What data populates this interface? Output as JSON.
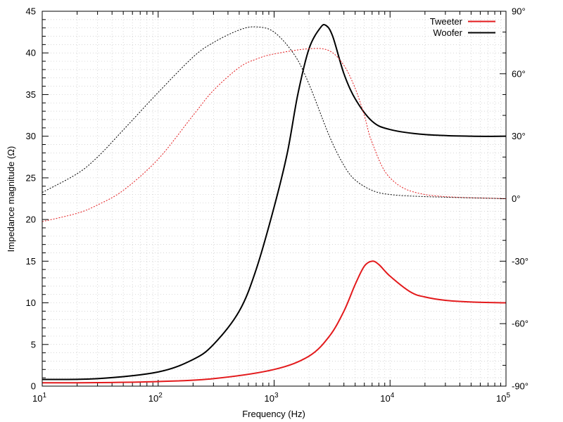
{
  "chart_data": {
    "type": "line",
    "xlabel": "Frequency (Hz)",
    "ylabel": "Impedance magnitude (Ω)",
    "x_scale": "log",
    "xlim": [
      10,
      100000
    ],
    "ylim": [
      0,
      45
    ],
    "y2lim": [
      -90,
      90
    ],
    "x_ticks": [
      {
        "value": 10,
        "base": "10",
        "exp": "1"
      },
      {
        "value": 100,
        "base": "10",
        "exp": "2"
      },
      {
        "value": 1000,
        "base": "10",
        "exp": "3"
      },
      {
        "value": 10000,
        "base": "10",
        "exp": "4"
      },
      {
        "value": 100000,
        "base": "10",
        "exp": "5"
      }
    ],
    "y_ticks": [
      "0",
      "5",
      "10",
      "15",
      "20",
      "25",
      "30",
      "35",
      "40",
      "45"
    ],
    "y2_ticks": [
      "-90°",
      "-60°",
      "-30°",
      "0°",
      "30°",
      "60°",
      "90°"
    ],
    "grid": true,
    "legend_position": "top-right",
    "series": [
      {
        "name": "Tweeter",
        "color": "#e31a1c",
        "axis": "y",
        "style": "solid",
        "x": [
          10,
          30,
          100,
          300,
          1000,
          2000,
          3000,
          4000,
          5000,
          6000,
          7000,
          8000,
          10000,
          15000,
          20000,
          30000,
          50000,
          100000
        ],
        "y": [
          0.4,
          0.42,
          0.55,
          0.9,
          2.0,
          3.6,
          6.0,
          9.0,
          12.2,
          14.4,
          15.0,
          14.6,
          13.2,
          11.3,
          10.7,
          10.3,
          10.1,
          10.0
        ]
      },
      {
        "name": "Woofer",
        "color": "#000000",
        "axis": "y",
        "style": "solid",
        "x": [
          10,
          30,
          100,
          200,
          300,
          500,
          700,
          1000,
          1300,
          1600,
          2000,
          2500,
          2800,
          3200,
          4000,
          5000,
          7000,
          10000,
          20000,
          50000,
          100000
        ],
        "y": [
          0.8,
          0.9,
          1.7,
          3.2,
          5.0,
          9.0,
          14.0,
          21.5,
          28.0,
          35.0,
          40.5,
          43.0,
          43.3,
          42.0,
          37.5,
          34.5,
          31.8,
          30.8,
          30.2,
          30.0,
          30.0
        ]
      },
      {
        "name": "",
        "color": "#e31a1c",
        "axis": "y2",
        "style": "dotted",
        "x": [
          10,
          20,
          30,
          50,
          100,
          200,
          300,
          500,
          700,
          1000,
          2000,
          3000,
          4000,
          5000,
          6000,
          7000,
          10000,
          20000,
          100000
        ],
        "y": [
          -11,
          -7,
          -3,
          4,
          19,
          40,
          52,
          63,
          67,
          69.5,
          72,
          71,
          64,
          53,
          40,
          27,
          10,
          2,
          0
        ]
      },
      {
        "name": "",
        "color": "#000000",
        "axis": "y2",
        "style": "dotted",
        "x": [
          10,
          20,
          30,
          50,
          100,
          200,
          300,
          500,
          700,
          1000,
          1500,
          2000,
          3000,
          4000,
          5000,
          7000,
          10000,
          20000,
          100000
        ],
        "y": [
          3,
          12,
          20,
          33,
          51,
          68,
          75,
          81,
          82.5,
          80,
          69,
          55,
          30,
          16,
          9,
          4,
          2,
          1,
          0
        ]
      }
    ]
  }
}
